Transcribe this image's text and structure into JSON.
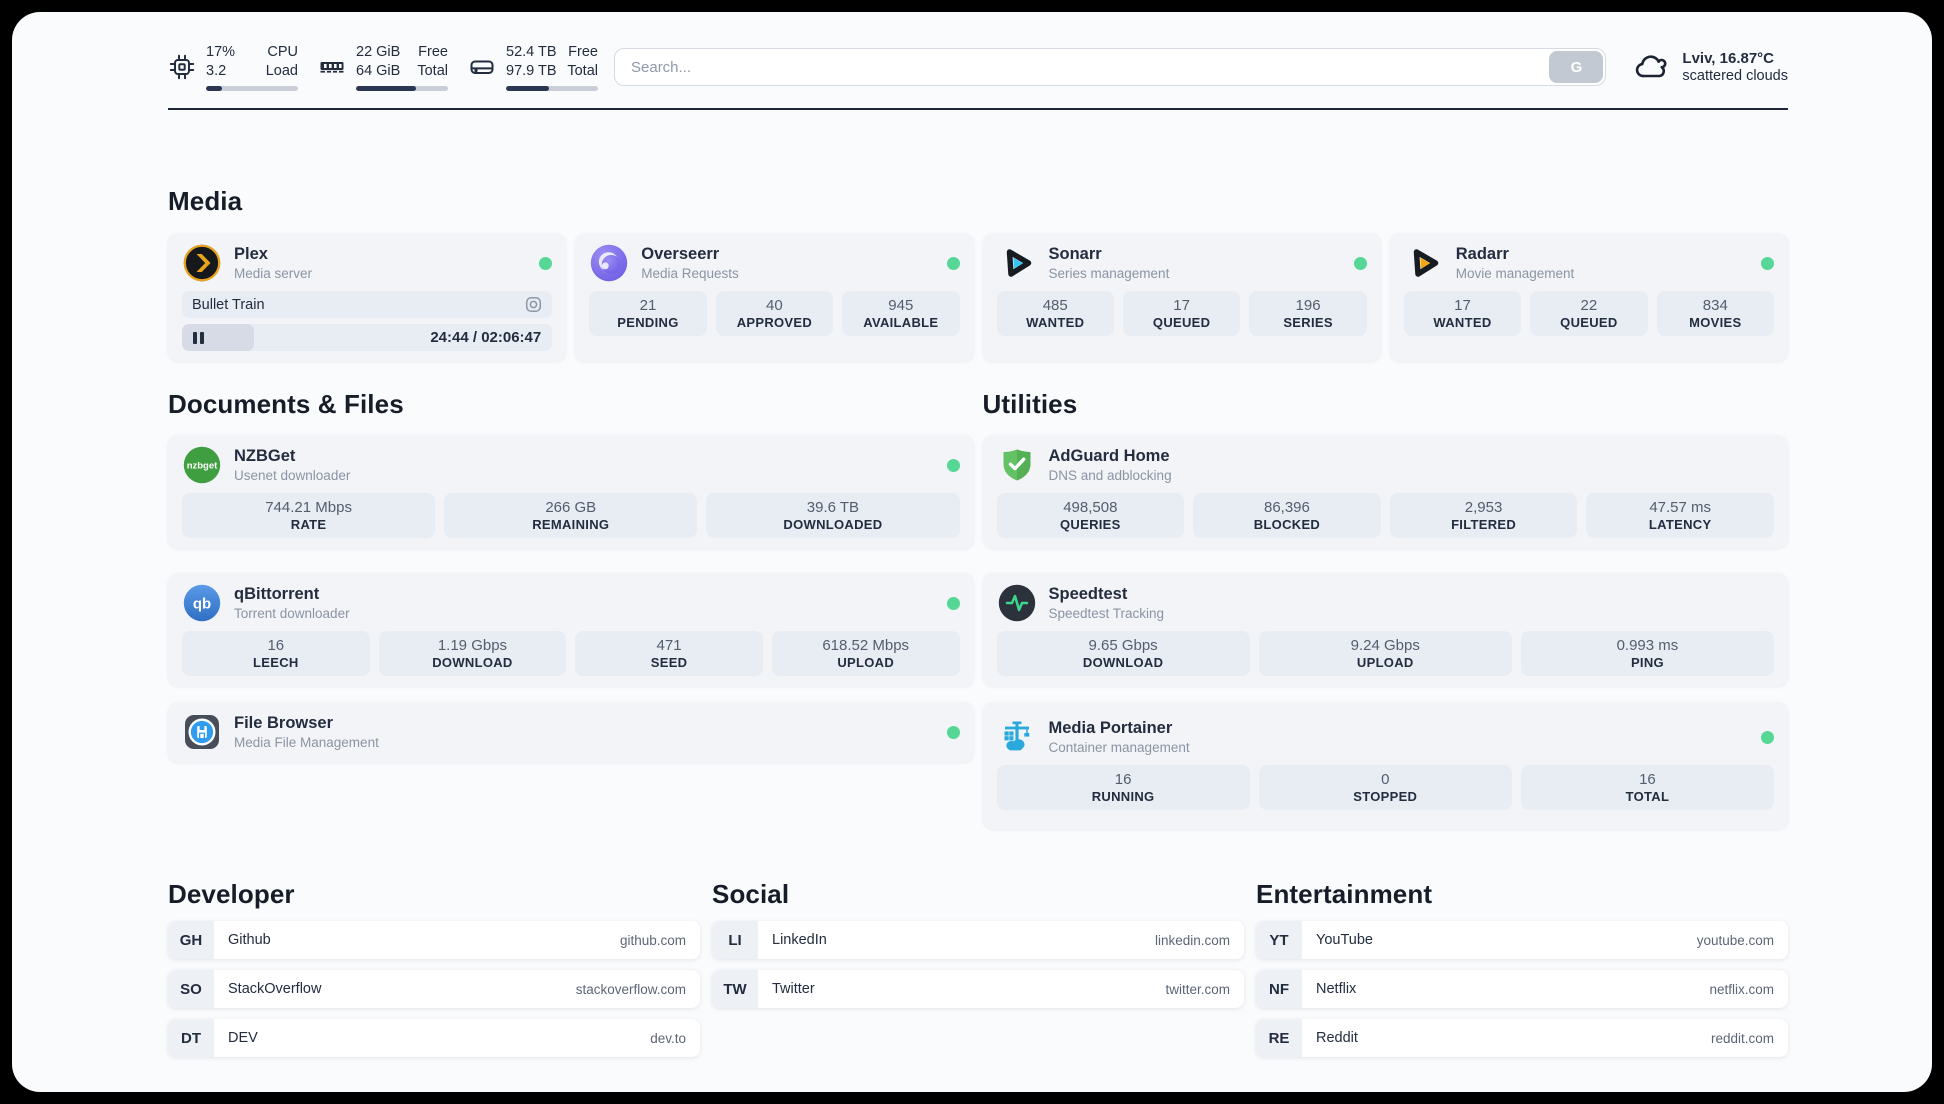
{
  "header": {
    "metrics": [
      {
        "icon": "cpu-icon",
        "value1": "17%",
        "value2": "3.2",
        "label1": "CPU",
        "label2": "Load",
        "progress_pct": 17
      },
      {
        "icon": "ram-icon",
        "value1": "22 GiB",
        "value2": "64 GiB",
        "label1": "Free",
        "label2": "Total",
        "progress_pct": 65
      },
      {
        "icon": "disk-icon",
        "value1": "52.4 TB",
        "value2": "97.9 TB",
        "label1": "Free",
        "label2": "Total",
        "progress_pct": 47
      }
    ],
    "search": {
      "placeholder": "Search...",
      "button_label": "G"
    },
    "weather": {
      "location": "Lviv, 16.87°C",
      "condition": "scattered clouds"
    }
  },
  "media": {
    "title": "Media",
    "plex": {
      "name": "Plex",
      "subtitle": "Media server",
      "status": "online",
      "now_playing": "Bullet Train",
      "time_display": "24:44 / 02:06:47",
      "progress_pct": 19.5
    },
    "overseerr": {
      "name": "Overseerr",
      "subtitle": "Media Requests",
      "status": "online",
      "stats": [
        {
          "value": "21",
          "label": "PENDING"
        },
        {
          "value": "40",
          "label": "APPROVED"
        },
        {
          "value": "945",
          "label": "AVAILABLE"
        }
      ]
    },
    "sonarr": {
      "name": "Sonarr",
      "subtitle": "Series management",
      "status": "online",
      "stats": [
        {
          "value": "485",
          "label": "WANTED"
        },
        {
          "value": "17",
          "label": "QUEUED"
        },
        {
          "value": "196",
          "label": "SERIES"
        }
      ]
    },
    "radarr": {
      "name": "Radarr",
      "subtitle": "Movie management",
      "status": "online",
      "stats": [
        {
          "value": "17",
          "label": "WANTED"
        },
        {
          "value": "22",
          "label": "QUEUED"
        },
        {
          "value": "834",
          "label": "MOVIES"
        }
      ]
    }
  },
  "documents": {
    "title": "Documents & Files",
    "nzbget": {
      "name": "NZBGet",
      "subtitle": "Usenet downloader",
      "status": "online",
      "stats": [
        {
          "value": "744.21 Mbps",
          "label": "RATE"
        },
        {
          "value": "266 GB",
          "label": "REMAINING"
        },
        {
          "value": "39.6 TB",
          "label": "DOWNLOADED"
        }
      ]
    },
    "qbittorrent": {
      "name": "qBittorrent",
      "subtitle": "Torrent downloader",
      "status": "online",
      "stats": [
        {
          "value": "16",
          "label": "LEECH"
        },
        {
          "value": "1.19 Gbps",
          "label": "DOWNLOAD"
        },
        {
          "value": "471",
          "label": "SEED"
        },
        {
          "value": "618.52 Mbps",
          "label": "UPLOAD"
        }
      ]
    },
    "filebrowser": {
      "name": "File Browser",
      "subtitle": "Media File Management",
      "status": "online"
    }
  },
  "utilities": {
    "title": "Utilities",
    "adguard": {
      "name": "AdGuard Home",
      "subtitle": "DNS and adblocking",
      "stats": [
        {
          "value": "498,508",
          "label": "QUERIES"
        },
        {
          "value": "86,396",
          "label": "BLOCKED"
        },
        {
          "value": "2,953",
          "label": "FILTERED"
        },
        {
          "value": "47.57 ms",
          "label": "LATENCY"
        }
      ]
    },
    "speedtest": {
      "name": "Speedtest",
      "subtitle": "Speedtest Tracking",
      "stats": [
        {
          "value": "9.65 Gbps",
          "label": "DOWNLOAD"
        },
        {
          "value": "9.24 Gbps",
          "label": "UPLOAD"
        },
        {
          "value": "0.993 ms",
          "label": "PING"
        }
      ]
    },
    "portainer": {
      "name": "Media Portainer",
      "subtitle": "Container management",
      "status": "online",
      "stats": [
        {
          "value": "16",
          "label": "RUNNING"
        },
        {
          "value": "0",
          "label": "STOPPED"
        },
        {
          "value": "16",
          "label": "TOTAL"
        }
      ]
    }
  },
  "bookmarks": [
    {
      "title": "Developer",
      "links": [
        {
          "abbr": "GH",
          "name": "Github",
          "url": "github.com"
        },
        {
          "abbr": "SO",
          "name": "StackOverflow",
          "url": "stackoverflow.com"
        },
        {
          "abbr": "DT",
          "name": "DEV",
          "url": "dev.to"
        }
      ]
    },
    {
      "title": "Social",
      "links": [
        {
          "abbr": "LI",
          "name": "LinkedIn",
          "url": "linkedin.com"
        },
        {
          "abbr": "TW",
          "name": "Twitter",
          "url": "twitter.com"
        }
      ]
    },
    {
      "title": "Entertainment",
      "links": [
        {
          "abbr": "YT",
          "name": "YouTube",
          "url": "youtube.com"
        },
        {
          "abbr": "NF",
          "name": "Netflix",
          "url": "netflix.com"
        },
        {
          "abbr": "RE",
          "name": "Reddit",
          "url": "reddit.com"
        }
      ]
    }
  ],
  "icons": {
    "nzbget_text": "nzbget",
    "qbittorrent_text": "qb",
    "status_color": "#56d795",
    "accent_dark": "#232d3f"
  }
}
